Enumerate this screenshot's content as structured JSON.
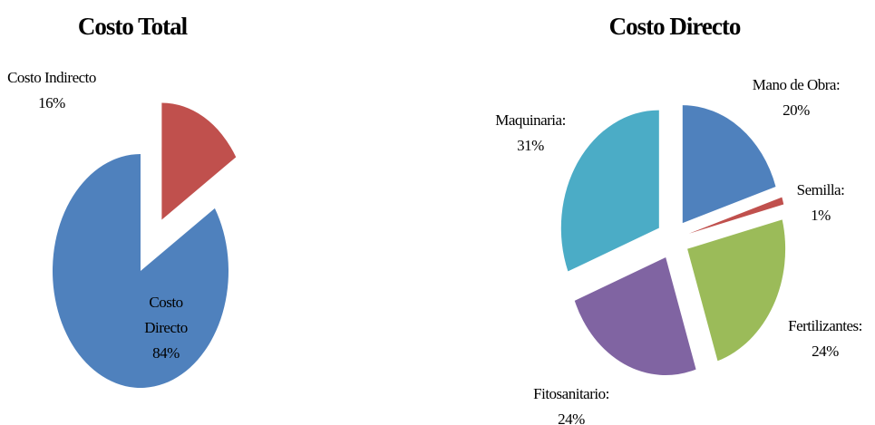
{
  "chart_data": [
    {
      "type": "pie",
      "title": "Costo Total",
      "categories": [
        "Costo Indirecto",
        "Costo Directo"
      ],
      "values": [
        16,
        84
      ],
      "value_labels": [
        "16%",
        "84%"
      ],
      "colors": [
        "#c0504d",
        "#4f81bd"
      ]
    },
    {
      "type": "pie",
      "title": "Costo Directo",
      "categories": [
        "Mano de Obra:",
        "Semilla:",
        "Fertilizantes:",
        "Fitosanitario:",
        "Maquinaria:"
      ],
      "values": [
        20,
        1,
        24,
        24,
        31
      ],
      "value_labels": [
        "20%",
        "1%",
        "24%",
        "24%",
        "31%"
      ],
      "colors": [
        "#4f81bd",
        "#c0504d",
        "#9bbb59",
        "#8064a2",
        "#4bacc6"
      ]
    }
  ]
}
